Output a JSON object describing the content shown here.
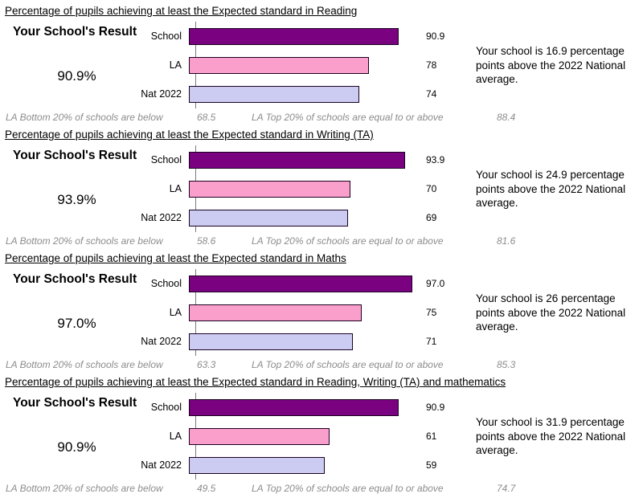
{
  "page": {
    "result_heading": "Your School's Result",
    "footer_bottom_label": "LA Bottom 20% of schools are below",
    "footer_top_label": "LA Top 20% of schools are equal to or above"
  },
  "chart_data": [
    {
      "type": "bar",
      "orientation": "horizontal",
      "title": "Percentage of pupils achieving at least the Expected standard in Reading",
      "categories": [
        "School",
        "LA",
        "Nat 2022"
      ],
      "values": [
        90.9,
        78,
        74
      ],
      "value_labels": [
        "90.9",
        "78",
        "74"
      ],
      "xlim": [
        0,
        100
      ],
      "grid": false,
      "legend": "none",
      "bar_colors": [
        "#7A0180",
        "#FA9ECB",
        "#CCCCF2"
      ],
      "school_result": "90.9%",
      "comment": "Your school is 16.9 percentage points above the 2022 National average.",
      "la_bottom20": "68.5",
      "la_top20": "88.4"
    },
    {
      "type": "bar",
      "orientation": "horizontal",
      "title": "Percentage of pupils achieving at least the Expected standard in Writing (TA)",
      "categories": [
        "School",
        "LA",
        "Nat 2022"
      ],
      "values": [
        93.9,
        70,
        69
      ],
      "value_labels": [
        "93.9",
        "70",
        "69"
      ],
      "xlim": [
        0,
        100
      ],
      "grid": false,
      "legend": "none",
      "bar_colors": [
        "#7A0180",
        "#FA9ECB",
        "#CCCCF2"
      ],
      "school_result": "93.9%",
      "comment": "Your school is 24.9 percentage points above the 2022 National average.",
      "la_bottom20": "58.6",
      "la_top20": "81.6"
    },
    {
      "type": "bar",
      "orientation": "horizontal",
      "title": "Percentage of pupils achieving at least the Expected standard in Maths",
      "categories": [
        "School",
        "LA",
        "Nat 2022"
      ],
      "values": [
        97.0,
        75,
        71
      ],
      "value_labels": [
        "97.0",
        "75",
        "71"
      ],
      "xlim": [
        0,
        100
      ],
      "grid": false,
      "legend": "none",
      "bar_colors": [
        "#7A0180",
        "#FA9ECB",
        "#CCCCF2"
      ],
      "school_result": "97.0%",
      "comment": "Your school is 26 percentage points above the 2022 National average.",
      "la_bottom20": "63.3",
      "la_top20": "85.3"
    },
    {
      "type": "bar",
      "orientation": "horizontal",
      "title": "Percentage of pupils achieving at least the Expected standard in Reading, Writing (TA) and mathematics",
      "categories": [
        "School",
        "LA",
        "Nat 2022"
      ],
      "values": [
        90.9,
        61,
        59
      ],
      "value_labels": [
        "90.9",
        "61",
        "59"
      ],
      "xlim": [
        0,
        100
      ],
      "grid": false,
      "legend": "none",
      "bar_colors": [
        "#7A0180",
        "#FA9ECB",
        "#CCCCF2"
      ],
      "school_result": "90.9%",
      "comment": "Your school is 31.9 percentage points above the 2022 National average.",
      "la_bottom20": "49.5",
      "la_top20": "74.7"
    }
  ]
}
